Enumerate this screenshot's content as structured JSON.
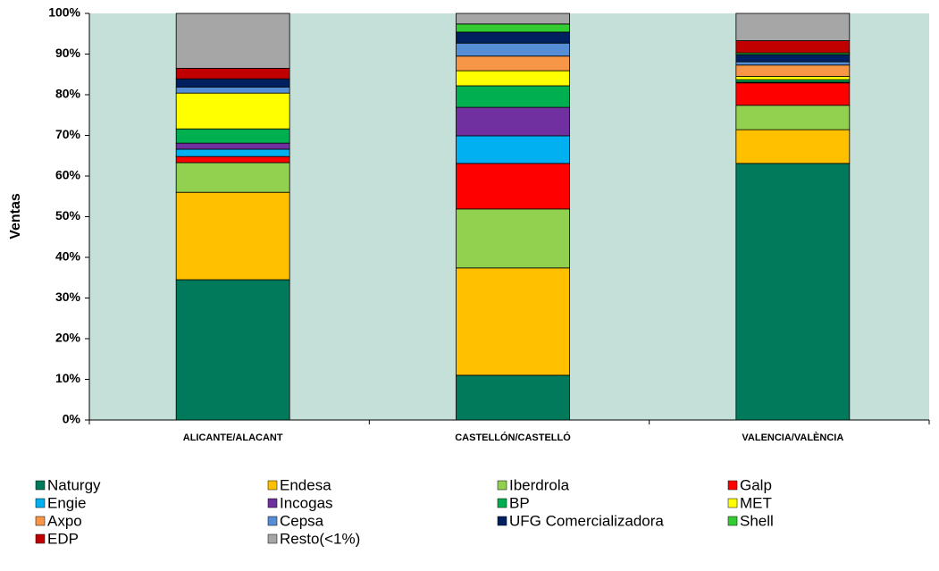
{
  "chart_data": {
    "type": "stacked_bar",
    "y_label": "Ventas",
    "categories": [
      "ALICANTE/ALACANT",
      "CASTELLÓN/CASTELLÓ",
      "VALENCIA/VALÈNCIA"
    ],
    "ylim": [
      0,
      100
    ],
    "yticks": [
      {
        "value": 0,
        "label": "0%"
      },
      {
        "value": 10,
        "label": "10%"
      },
      {
        "value": 20,
        "label": "20%"
      },
      {
        "value": 30,
        "label": "30%"
      },
      {
        "value": 40,
        "label": "40%"
      },
      {
        "value": 50,
        "label": "50%"
      },
      {
        "value": 60,
        "label": "60%"
      },
      {
        "value": 70,
        "label": "70%"
      },
      {
        "value": 80,
        "label": "80%"
      },
      {
        "value": 90,
        "label": "90%"
      },
      {
        "value": 100,
        "label": "100%"
      }
    ],
    "grid": false,
    "legend": "bottom",
    "series": [
      {
        "name": "Naturgy",
        "color": "#007a5a",
        "values": [
          34.5,
          11.0,
          63.1
        ]
      },
      {
        "name": "Endesa",
        "color": "#ffc000",
        "values": [
          21.5,
          26.4,
          8.3
        ]
      },
      {
        "name": "Iberdrola",
        "color": "#92d050",
        "values": [
          7.3,
          14.5,
          6.0
        ]
      },
      {
        "name": "Galp",
        "color": "#ff0000",
        "values": [
          1.5,
          11.2,
          5.5
        ]
      },
      {
        "name": "Engie",
        "color": "#00b0f0",
        "values": [
          1.8,
          6.8,
          0
        ]
      },
      {
        "name": "Incogas",
        "color": "#7030a0",
        "values": [
          1.5,
          7.0,
          0.2
        ]
      },
      {
        "name": "BP",
        "color": "#00b050",
        "values": [
          3.5,
          5.3,
          0.6
        ]
      },
      {
        "name": "MET",
        "color": "#ffff00",
        "values": [
          8.8,
          3.7,
          0.8
        ]
      },
      {
        "name": "Axpo",
        "color": "#f79646",
        "values": [
          0,
          3.6,
          2.8
        ]
      },
      {
        "name": "Cepsa",
        "color": "#558ed5",
        "values": [
          1.5,
          3.2,
          0.8
        ]
      },
      {
        "name": "UFG Comercializadora",
        "color": "#002060",
        "values": [
          2.0,
          2.7,
          1.8
        ]
      },
      {
        "name": "Shell",
        "color": "#33cc33",
        "values": [
          0,
          2.0,
          0.4
        ]
      },
      {
        "name": "EDP",
        "color": "#c00000",
        "values": [
          2.6,
          0,
          3.0
        ]
      },
      {
        "name": "Resto(<1%)",
        "color": "#a6a6a6",
        "values": [
          13.5,
          2.6,
          6.7
        ]
      }
    ]
  }
}
